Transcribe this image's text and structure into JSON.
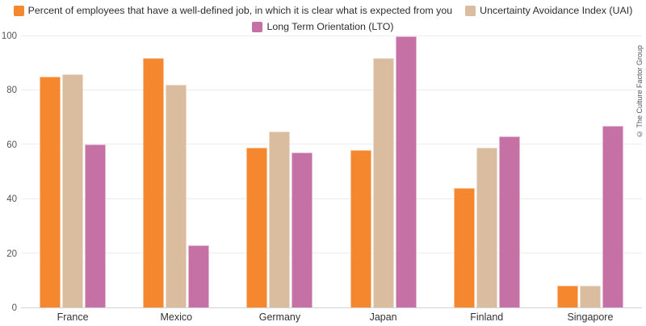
{
  "chart_data": {
    "type": "bar",
    "title": "",
    "xlabel": "",
    "ylabel": "",
    "categories": [
      "France",
      "Mexico",
      "Germany",
      "Japan",
      "Finland",
      "Singapore"
    ],
    "series": [
      {
        "name": "Percent of employees that have a well-defined job, in which it is clear what is expected from you",
        "color": "#f5882e",
        "values": [
          85,
          92,
          59,
          58,
          44,
          8
        ]
      },
      {
        "name": "Uncertainty Avoidance Index (UAI)",
        "color": "#d9bd9e",
        "values": [
          86,
          82,
          65,
          92,
          59,
          8
        ]
      },
      {
        "name": "Long Term Orientation (LTO)",
        "color": "#c671a5",
        "values": [
          60,
          23,
          57,
          100,
          63,
          67
        ]
      }
    ],
    "ylim": [
      0,
      100
    ],
    "yticks": [
      0,
      20,
      40,
      60,
      80,
      100
    ],
    "grid": true,
    "legend_position": "top"
  },
  "watermark": "© The Culture Factor Group"
}
